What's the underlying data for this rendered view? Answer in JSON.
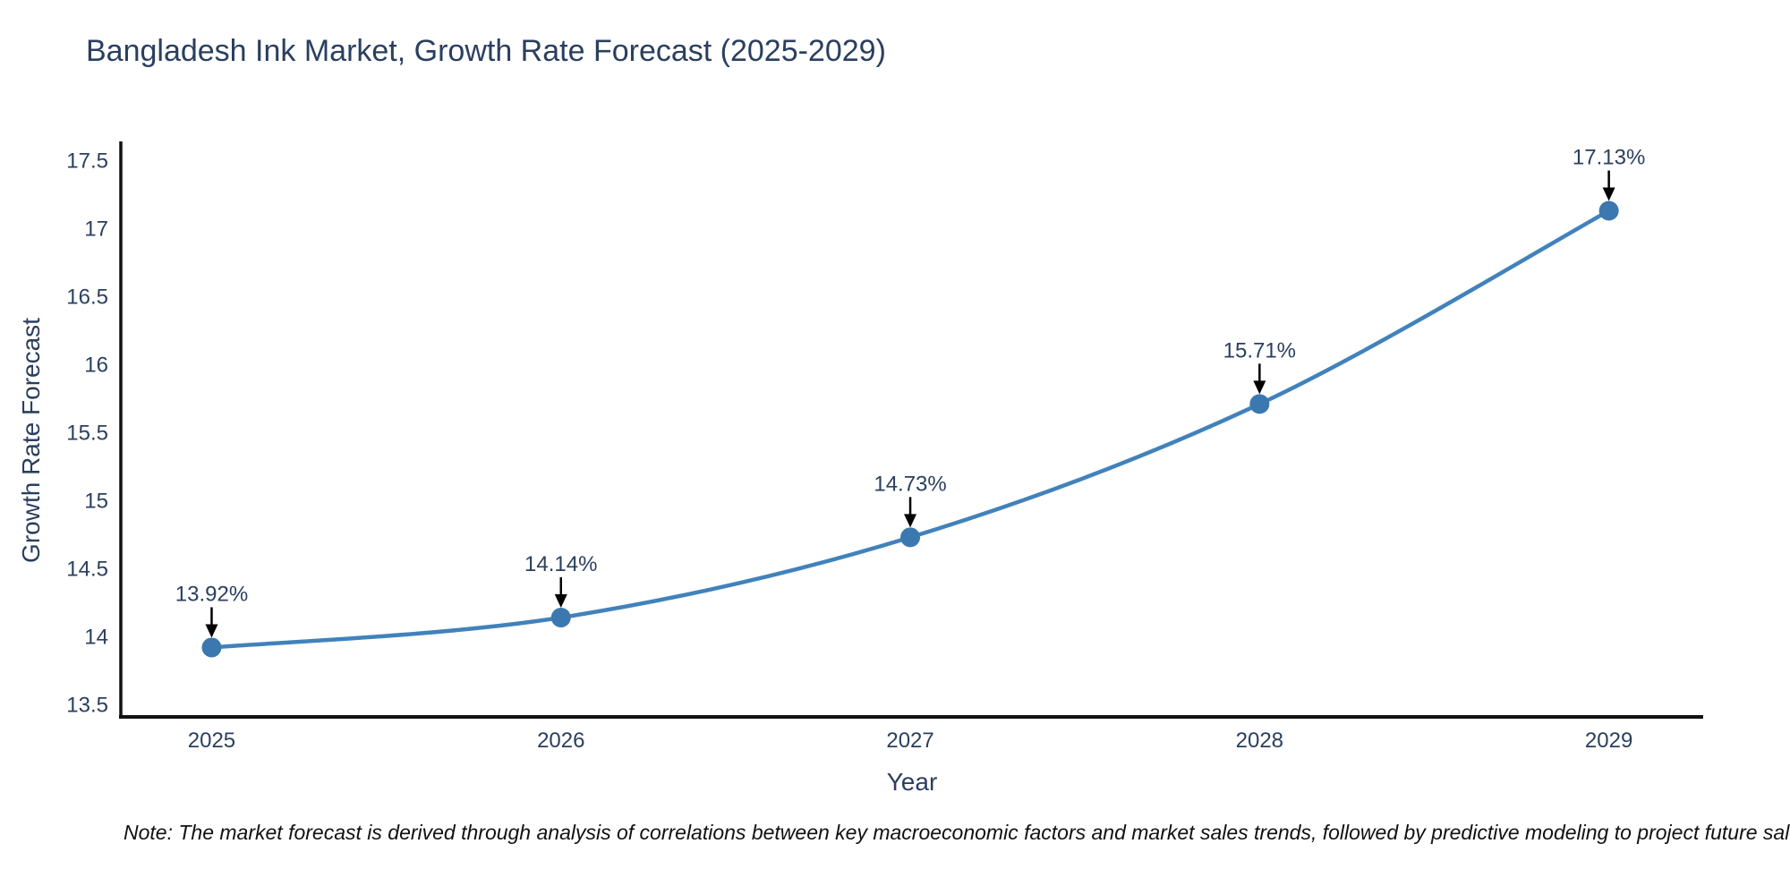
{
  "title": "Bangladesh Ink Market, Growth Rate Forecast (2025-2029)",
  "note": "Note: The market forecast is derived through analysis of correlations between key macroeconomic factors and market sales trends, followed by predictive modeling to project future sal",
  "colors": {
    "line": "#4182bb",
    "marker": "#3c78b0",
    "axis": "#111111",
    "tick_text": "#2a3f5f",
    "annotation_text": "#2a3f5f",
    "arrow": "#000000",
    "background": "#ffffff"
  },
  "chart_data": {
    "type": "line",
    "title": "Bangladesh Ink Market, Growth Rate Forecast (2025-2029)",
    "x": [
      2025,
      2026,
      2027,
      2028,
      2029
    ],
    "values": [
      13.92,
      14.14,
      14.73,
      15.71,
      17.13
    ],
    "annotations": [
      "13.92%",
      "14.14%",
      "14.73%",
      "15.71%",
      "17.13%"
    ],
    "xlabel": "Year",
    "ylabel": "Growth Rate Forecast",
    "x_tick_labels": [
      "2025",
      "2026",
      "2027",
      "2028",
      "2029"
    ],
    "y_ticks": [
      13.5,
      14,
      14.5,
      15,
      15.5,
      16,
      16.5,
      17,
      17.5
    ],
    "y_tick_labels": [
      "13.5",
      "14",
      "14.5",
      "15",
      "15.5",
      "16",
      "16.5",
      "17",
      "17.5"
    ],
    "xlim": [
      2024.74,
      2029.27
    ],
    "ylim": [
      13.41,
      17.64
    ],
    "grid": false,
    "legend": null,
    "smooth": true,
    "marker_size": 11,
    "line_width": 4.5
  }
}
